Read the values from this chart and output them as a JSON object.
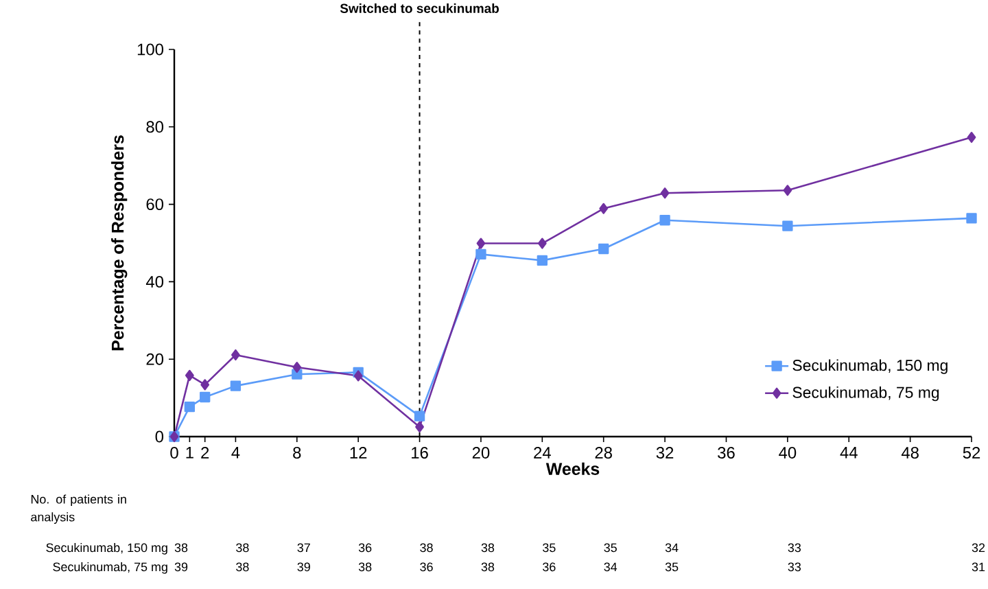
{
  "chart_data": {
    "type": "line",
    "xlabel": "Weeks",
    "ylabel": "Percentage of Responders",
    "x": [
      0,
      1,
      2,
      4,
      8,
      12,
      16,
      20,
      24,
      28,
      32,
      40,
      52
    ],
    "series": [
      {
        "name": "Secukinumab, 150 mg",
        "color": "#5b9bf8",
        "marker": "square",
        "values": [
          0,
          7.7,
          10.2,
          13.1,
          16.1,
          16.6,
          5.3,
          47.1,
          45.5,
          48.5,
          55.9,
          54.4,
          56.4
        ]
      },
      {
        "name": "Secukinumab, 75 mg",
        "color": "#7030a0",
        "marker": "diamond",
        "values": [
          0,
          15.8,
          13.4,
          21.1,
          17.9,
          15.7,
          2.5,
          49.9,
          49.9,
          58.9,
          62.9,
          63.6,
          77.3
        ]
      }
    ],
    "xlim": [
      0,
      52
    ],
    "xticks": [
      0,
      1,
      2,
      4,
      8,
      12,
      16,
      20,
      24,
      28,
      32,
      36,
      40,
      44,
      48,
      52
    ],
    "ylim": [
      0,
      100
    ],
    "yticks": [
      0,
      20,
      40,
      60,
      80,
      100
    ],
    "ref_lines": [
      {
        "axis": "x",
        "value": 16,
        "label": "Switched to secukinumab",
        "color": "#000000",
        "line_style": "dashed"
      }
    ],
    "legend": "bottom right",
    "grid": false,
    "line_style": "solid",
    "annotations": [
      "No. of patients in analysis",
      "Secukinumab, 150 mg",
      "38",
      "38",
      "37",
      "36",
      "38",
      "38",
      "35",
      "35",
      "34",
      "33",
      "32",
      "Secukinumab, 75 mg",
      "39",
      "38",
      "39",
      "38",
      "36",
      "38",
      "36",
      "34",
      "35",
      "33",
      "31"
    ]
  }
}
